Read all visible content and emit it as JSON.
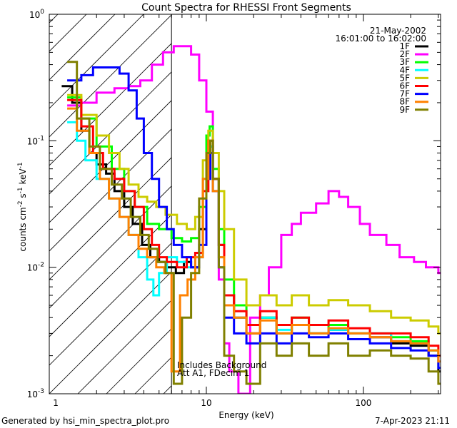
{
  "chart_data": {
    "type": "line",
    "title": "Count Spectra for RHESSI Front Segments",
    "xlabel": "Energy (keV)",
    "ylabel": "counts cm-2 s-1 keV-1",
    "xscale": "log",
    "yscale": "log",
    "xlim": [
      1,
      310
    ],
    "ylim": [
      0.001,
      1.0
    ],
    "date": "21-May-2002",
    "time_range": "16:01:00 to 16:02:00",
    "shaded_region_max_kev": 6,
    "annotations": [
      "Includes Background",
      "Att A1, FDecim  1"
    ],
    "footer_left": "Generated by hsi_min_spectra_plot.pro",
    "footer_right": "7-Apr-2023 21:11",
    "x_ticks": [
      {
        "value": 10,
        "label": "10"
      },
      {
        "value": 100,
        "label": "100"
      }
    ],
    "x_minor_ticks": [
      2,
      3,
      4,
      5,
      6,
      7,
      8,
      9,
      20,
      30,
      40,
      50,
      60,
      70,
      80,
      90,
      200,
      300
    ],
    "y_ticks": [
      {
        "value": 0.001,
        "base": "10",
        "exp": "-3"
      },
      {
        "value": 0.01,
        "base": "10",
        "exp": "-2"
      },
      {
        "value": 0.1,
        "base": "10",
        "exp": "-1"
      },
      {
        "value": 1.0,
        "base": "10",
        "exp": "0"
      }
    ],
    "series": [
      {
        "name": "1F",
        "color": "#000000",
        "points": [
          [
            1.2,
            0.27
          ],
          [
            1.4,
            0.2
          ],
          [
            1.6,
            0.12
          ],
          [
            1.8,
            0.08
          ],
          [
            2.0,
            0.065
          ],
          [
            2.3,
            0.055
          ],
          [
            2.6,
            0.04
          ],
          [
            3.0,
            0.03
          ],
          [
            3.4,
            0.022
          ],
          [
            3.9,
            0.015
          ],
          [
            4.4,
            0.012
          ],
          [
            5,
            0.011
          ],
          [
            5.6,
            0.01
          ],
          [
            6.4,
            0.009
          ],
          [
            7.2,
            0.011
          ],
          [
            8,
            0.01
          ],
          [
            9,
            0.02
          ],
          [
            10,
            0.06
          ],
          [
            10.5,
            0.09
          ],
          [
            11,
            0.05
          ],
          [
            12,
            0.015
          ],
          [
            13,
            0.006
          ],
          [
            15,
            0.004
          ],
          [
            18,
            0.003
          ],
          [
            22,
            0.004
          ],
          [
            28,
            0.003
          ],
          [
            35,
            0.0035
          ],
          [
            45,
            0.003
          ],
          [
            60,
            0.0032
          ],
          [
            80,
            0.003
          ],
          [
            110,
            0.0028
          ],
          [
            150,
            0.0025
          ],
          [
            200,
            0.0024
          ],
          [
            260,
            0.002
          ],
          [
            300,
            0.0015
          ]
        ]
      },
      {
        "name": "2F",
        "color": "#ff00ff",
        "points": [
          [
            1.3,
            0.19
          ],
          [
            1.6,
            0.2
          ],
          [
            2.0,
            0.24
          ],
          [
            2.6,
            0.26
          ],
          [
            3.2,
            0.27
          ],
          [
            3.8,
            0.3
          ],
          [
            4.5,
            0.4
          ],
          [
            5.3,
            0.5
          ],
          [
            6.2,
            0.56
          ],
          [
            7.2,
            0.56
          ],
          [
            8,
            0.48
          ],
          [
            9,
            0.3
          ],
          [
            10,
            0.17
          ],
          [
            11,
            0.05
          ],
          [
            12,
            0.008
          ],
          [
            13,
            0.0025
          ],
          [
            14,
            0.0015
          ],
          [
            16,
            0.001
          ],
          [
            19,
            0.004
          ],
          [
            22,
            0.006
          ],
          [
            25,
            0.01
          ],
          [
            30,
            0.018
          ],
          [
            35,
            0.022
          ],
          [
            40,
            0.027
          ],
          [
            50,
            0.032
          ],
          [
            60,
            0.04
          ],
          [
            70,
            0.036
          ],
          [
            80,
            0.03
          ],
          [
            95,
            0.022
          ],
          [
            110,
            0.018
          ],
          [
            140,
            0.015
          ],
          [
            170,
            0.012
          ],
          [
            210,
            0.011
          ],
          [
            250,
            0.01
          ],
          [
            300,
            0.009
          ]
        ]
      },
      {
        "name": "3F",
        "color": "#00ff00",
        "points": [
          [
            1.3,
            0.22
          ],
          [
            1.6,
            0.15
          ],
          [
            2.0,
            0.09
          ],
          [
            2.5,
            0.06
          ],
          [
            3.0,
            0.04
          ],
          [
            3.5,
            0.03
          ],
          [
            4.2,
            0.022
          ],
          [
            5,
            0.02
          ],
          [
            6,
            0.017
          ],
          [
            7,
            0.016
          ],
          [
            8,
            0.017
          ],
          [
            9,
            0.03
          ],
          [
            10,
            0.11
          ],
          [
            10.5,
            0.13
          ],
          [
            11,
            0.06
          ],
          [
            12,
            0.02
          ],
          [
            13,
            0.008
          ],
          [
            15,
            0.005
          ],
          [
            18,
            0.0035
          ],
          [
            22,
            0.004
          ],
          [
            28,
            0.003
          ],
          [
            35,
            0.004
          ],
          [
            45,
            0.003
          ],
          [
            60,
            0.0035
          ],
          [
            80,
            0.003
          ],
          [
            110,
            0.003
          ],
          [
            150,
            0.0028
          ],
          [
            200,
            0.0026
          ],
          [
            260,
            0.0022
          ],
          [
            300,
            0.002
          ]
        ]
      },
      {
        "name": "4F",
        "color": "#00ffff",
        "points": [
          [
            1.3,
            0.14
          ],
          [
            1.5,
            0.1
          ],
          [
            1.7,
            0.07
          ],
          [
            2.0,
            0.05
          ],
          [
            2.4,
            0.035
          ],
          [
            2.8,
            0.025
          ],
          [
            3.2,
            0.018
          ],
          [
            3.7,
            0.012
          ],
          [
            4.2,
            0.008
          ],
          [
            4.6,
            0.006
          ],
          [
            5,
            0.009
          ],
          [
            5.6,
            0.012
          ],
          [
            6.5,
            0.011
          ],
          [
            7.5,
            0.01
          ],
          [
            8.5,
            0.012
          ],
          [
            9.5,
            0.05
          ],
          [
            10.3,
            0.09
          ],
          [
            11,
            0.04
          ],
          [
            12,
            0.012
          ],
          [
            13,
            0.005
          ],
          [
            15,
            0.004
          ],
          [
            18,
            0.0035
          ],
          [
            22,
            0.004
          ],
          [
            28,
            0.0032
          ],
          [
            35,
            0.0035
          ],
          [
            45,
            0.003
          ],
          [
            60,
            0.0032
          ],
          [
            80,
            0.003
          ],
          [
            110,
            0.003
          ],
          [
            150,
            0.0026
          ],
          [
            200,
            0.0025
          ],
          [
            260,
            0.0022
          ],
          [
            300,
            0.002
          ]
        ]
      },
      {
        "name": "5F",
        "color": "#cccc00",
        "points": [
          [
            1.3,
            0.23
          ],
          [
            1.6,
            0.16
          ],
          [
            2.0,
            0.11
          ],
          [
            2.4,
            0.08
          ],
          [
            2.8,
            0.06
          ],
          [
            3.2,
            0.045
          ],
          [
            3.7,
            0.036
          ],
          [
            4.2,
            0.033
          ],
          [
            4.8,
            0.03
          ],
          [
            5.5,
            0.026
          ],
          [
            6.5,
            0.022
          ],
          [
            7.5,
            0.02
          ],
          [
            8.5,
            0.025
          ],
          [
            9.5,
            0.07
          ],
          [
            10.3,
            0.12
          ],
          [
            11,
            0.08
          ],
          [
            12,
            0.04
          ],
          [
            13,
            0.02
          ],
          [
            15,
            0.008
          ],
          [
            18,
            0.005
          ],
          [
            22,
            0.006
          ],
          [
            28,
            0.005
          ],
          [
            35,
            0.006
          ],
          [
            45,
            0.005
          ],
          [
            60,
            0.0055
          ],
          [
            80,
            0.005
          ],
          [
            110,
            0.0045
          ],
          [
            150,
            0.004
          ],
          [
            200,
            0.0038
          ],
          [
            260,
            0.0034
          ],
          [
            300,
            0.003
          ]
        ]
      },
      {
        "name": "6F",
        "color": "#ff0000",
        "points": [
          [
            1.3,
            0.21
          ],
          [
            1.6,
            0.13
          ],
          [
            1.9,
            0.08
          ],
          [
            2.2,
            0.06
          ],
          [
            2.6,
            0.05
          ],
          [
            3.0,
            0.04
          ],
          [
            3.5,
            0.03
          ],
          [
            4.0,
            0.02
          ],
          [
            4.5,
            0.015
          ],
          [
            5,
            0.012
          ],
          [
            5.6,
            0.011
          ],
          [
            6.5,
            0.01
          ],
          [
            7.5,
            0.012
          ],
          [
            8.5,
            0.013
          ],
          [
            9.5,
            0.04
          ],
          [
            10.3,
            0.1
          ],
          [
            11,
            0.05
          ],
          [
            12,
            0.015
          ],
          [
            13,
            0.006
          ],
          [
            15,
            0.0045
          ],
          [
            18,
            0.0035
          ],
          [
            22,
            0.0045
          ],
          [
            28,
            0.0035
          ],
          [
            35,
            0.004
          ],
          [
            45,
            0.0035
          ],
          [
            60,
            0.0038
          ],
          [
            80,
            0.0033
          ],
          [
            110,
            0.003
          ],
          [
            150,
            0.003
          ],
          [
            200,
            0.0028
          ],
          [
            260,
            0.0024
          ],
          [
            300,
            0.002
          ]
        ]
      },
      {
        "name": "7F",
        "color": "#0000ff",
        "points": [
          [
            1.3,
            0.3
          ],
          [
            1.6,
            0.33
          ],
          [
            1.9,
            0.38
          ],
          [
            2.3,
            0.38
          ],
          [
            2.8,
            0.34
          ],
          [
            3.2,
            0.25
          ],
          [
            3.6,
            0.15
          ],
          [
            4.0,
            0.08
          ],
          [
            4.5,
            0.05
          ],
          [
            5,
            0.03
          ],
          [
            5.6,
            0.02
          ],
          [
            6.2,
            0.015
          ],
          [
            7,
            0.012
          ],
          [
            8,
            0.01
          ],
          [
            9,
            0.015
          ],
          [
            10,
            0.05
          ],
          [
            10.6,
            0.08
          ],
          [
            11,
            0.04
          ],
          [
            12,
            0.01
          ],
          [
            13,
            0.004
          ],
          [
            15,
            0.003
          ],
          [
            18,
            0.0025
          ],
          [
            22,
            0.003
          ],
          [
            28,
            0.0025
          ],
          [
            35,
            0.003
          ],
          [
            45,
            0.0028
          ],
          [
            60,
            0.003
          ],
          [
            80,
            0.0027
          ],
          [
            110,
            0.0025
          ],
          [
            150,
            0.0023
          ],
          [
            200,
            0.0022
          ],
          [
            260,
            0.002
          ],
          [
            300,
            0.0016
          ]
        ]
      },
      {
        "name": "8F",
        "color": "#ff8000",
        "points": [
          [
            1.3,
            0.18
          ],
          [
            1.5,
            0.12
          ],
          [
            1.8,
            0.08
          ],
          [
            2.1,
            0.05
          ],
          [
            2.4,
            0.035
          ],
          [
            2.8,
            0.025
          ],
          [
            3.2,
            0.018
          ],
          [
            3.7,
            0.014
          ],
          [
            4.2,
            0.012
          ],
          [
            4.8,
            0.01
          ],
          [
            5.4,
            0.009
          ],
          [
            6,
            0.0015
          ],
          [
            6.8,
            0.006
          ],
          [
            7.6,
            0.008
          ],
          [
            8.5,
            0.012
          ],
          [
            9.5,
            0.05
          ],
          [
            10.3,
            0.1
          ],
          [
            11,
            0.04
          ],
          [
            12,
            0.012
          ],
          [
            13,
            0.005
          ],
          [
            15,
            0.004
          ],
          [
            18,
            0.003
          ],
          [
            22,
            0.0038
          ],
          [
            28,
            0.003
          ],
          [
            35,
            0.0035
          ],
          [
            45,
            0.003
          ],
          [
            60,
            0.0033
          ],
          [
            80,
            0.003
          ],
          [
            110,
            0.0028
          ],
          [
            150,
            0.0026
          ],
          [
            200,
            0.0025
          ],
          [
            260,
            0.0022
          ],
          [
            300,
            0.0018
          ]
        ]
      },
      {
        "name": "9F",
        "color": "#808000",
        "points": [
          [
            1.3,
            0.42
          ],
          [
            1.5,
            0.15
          ],
          [
            1.8,
            0.09
          ],
          [
            2.1,
            0.06
          ],
          [
            2.5,
            0.045
          ],
          [
            2.9,
            0.035
          ],
          [
            3.3,
            0.025
          ],
          [
            3.8,
            0.018
          ],
          [
            4.3,
            0.014
          ],
          [
            4.9,
            0.011
          ],
          [
            5.5,
            0.009
          ],
          [
            6.2,
            0.0012
          ],
          [
            7,
            0.004
          ],
          [
            8,
            0.009
          ],
          [
            9,
            0.035
          ],
          [
            10,
            0.08
          ],
          [
            10.6,
            0.1
          ],
          [
            11,
            0.05
          ],
          [
            12,
            0.01
          ],
          [
            13,
            0.002
          ],
          [
            15,
            0.0015
          ],
          [
            18,
            0.0012
          ],
          [
            22,
            0.0025
          ],
          [
            28,
            0.002
          ],
          [
            35,
            0.0025
          ],
          [
            45,
            0.002
          ],
          [
            60,
            0.0025
          ],
          [
            80,
            0.002
          ],
          [
            110,
            0.0022
          ],
          [
            150,
            0.002
          ],
          [
            200,
            0.0019
          ],
          [
            260,
            0.0015
          ],
          [
            300,
            0.0012
          ]
        ]
      }
    ]
  }
}
